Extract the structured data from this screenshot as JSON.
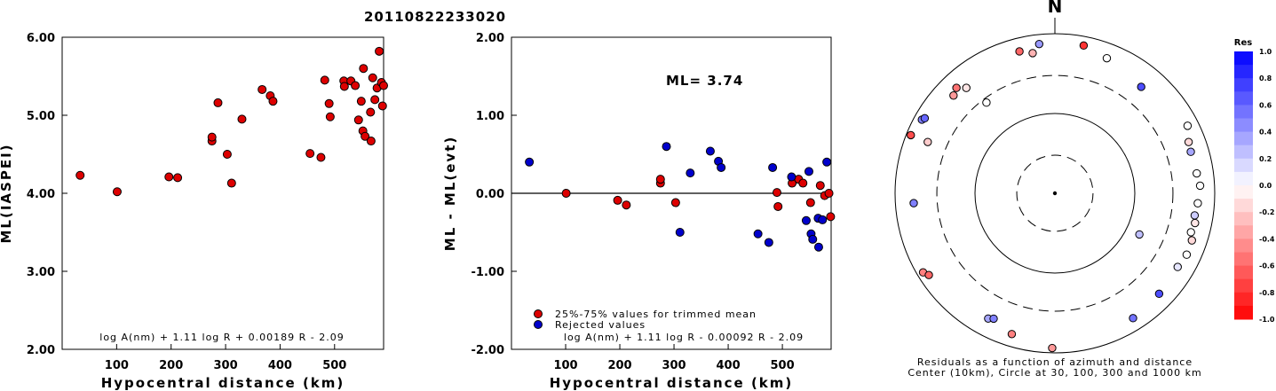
{
  "page_title": "20110822233020",
  "chart_data": [
    {
      "type": "scatter",
      "xlabel": "Hypocentral distance (km)",
      "ylabel": "ML(IASPEI)",
      "xlim": [
        0,
        590
      ],
      "ylim": [
        2.0,
        6.0
      ],
      "x_ticks": [
        "100",
        "200",
        "300",
        "400",
        "500"
      ],
      "y_ticks": [
        "2.00",
        "3.00",
        "4.00",
        "5.00",
        "6.00"
      ],
      "formula": "log A(nm) + 1.11 log R + 0.00189 R - 2.09",
      "points": [
        {
          "x": 33,
          "y": 4.23
        },
        {
          "x": 101,
          "y": 4.02
        },
        {
          "x": 196,
          "y": 4.21
        },
        {
          "x": 212,
          "y": 4.2
        },
        {
          "x": 275,
          "y": 4.67
        },
        {
          "x": 275,
          "y": 4.72
        },
        {
          "x": 286,
          "y": 5.16
        },
        {
          "x": 303,
          "y": 4.5
        },
        {
          "x": 311,
          "y": 4.13
        },
        {
          "x": 330,
          "y": 4.95
        },
        {
          "x": 367,
          "y": 5.33
        },
        {
          "x": 382,
          "y": 5.25
        },
        {
          "x": 387,
          "y": 5.18
        },
        {
          "x": 455,
          "y": 4.51
        },
        {
          "x": 475,
          "y": 4.46
        },
        {
          "x": 482,
          "y": 5.45
        },
        {
          "x": 490,
          "y": 5.15
        },
        {
          "x": 492,
          "y": 4.98
        },
        {
          "x": 517,
          "y": 5.44
        },
        {
          "x": 518,
          "y": 5.37
        },
        {
          "x": 530,
          "y": 5.44
        },
        {
          "x": 538,
          "y": 5.38
        },
        {
          "x": 544,
          "y": 4.94
        },
        {
          "x": 549,
          "y": 5.18
        },
        {
          "x": 552,
          "y": 4.8
        },
        {
          "x": 553,
          "y": 5.6
        },
        {
          "x": 556,
          "y": 4.73
        },
        {
          "x": 566,
          "y": 5.04
        },
        {
          "x": 567,
          "y": 4.67
        },
        {
          "x": 570,
          "y": 5.48
        },
        {
          "x": 574,
          "y": 5.2
        },
        {
          "x": 578,
          "y": 5.35
        },
        {
          "x": 582,
          "y": 5.82
        },
        {
          "x": 586,
          "y": 5.42
        },
        {
          "x": 588,
          "y": 5.12
        },
        {
          "x": 590,
          "y": 5.38
        }
      ]
    },
    {
      "type": "scatter",
      "xlabel": "Hypocentral distance (km)",
      "ylabel": "ML - ML(evt)",
      "xlim": [
        0,
        590
      ],
      "ylim": [
        -2.0,
        2.0
      ],
      "x_ticks": [
        "100",
        "200",
        "300",
        "400",
        "500"
      ],
      "y_ticks": [
        "-2.00",
        "-1.00",
        "0.00",
        "1.00",
        "2.00"
      ],
      "annotation": "ML= 3.74",
      "legend": [
        "25%-75% values for trimmed mean",
        "Rejected values"
      ],
      "formula": "log A(nm) + 1.11 log R - 0.00092 R - 2.09",
      "series": [
        {
          "color": "#dd0000",
          "points": [
            {
              "x": 101,
              "y": 0.0
            },
            {
              "x": 196,
              "y": -0.09
            },
            {
              "x": 212,
              "y": -0.15
            },
            {
              "x": 275,
              "y": 0.13
            },
            {
              "x": 275,
              "y": 0.18
            },
            {
              "x": 303,
              "y": -0.12
            },
            {
              "x": 490,
              "y": 0.01
            },
            {
              "x": 492,
              "y": -0.17
            },
            {
              "x": 518,
              "y": 0.13
            },
            {
              "x": 530,
              "y": 0.18
            },
            {
              "x": 538,
              "y": 0.13
            },
            {
              "x": 552,
              "y": -0.12
            },
            {
              "x": 570,
              "y": 0.1
            },
            {
              "x": 578,
              "y": -0.03
            },
            {
              "x": 586,
              "y": 0.0
            },
            {
              "x": 589,
              "y": -0.3
            }
          ]
        },
        {
          "color": "#0000cc",
          "points": [
            {
              "x": 33,
              "y": 0.4
            },
            {
              "x": 286,
              "y": 0.6
            },
            {
              "x": 311,
              "y": -0.5
            },
            {
              "x": 330,
              "y": 0.26
            },
            {
              "x": 367,
              "y": 0.54
            },
            {
              "x": 382,
              "y": 0.41
            },
            {
              "x": 387,
              "y": 0.33
            },
            {
              "x": 455,
              "y": -0.52
            },
            {
              "x": 475,
              "y": -0.63
            },
            {
              "x": 482,
              "y": 0.33
            },
            {
              "x": 517,
              "y": 0.21
            },
            {
              "x": 544,
              "y": -0.35
            },
            {
              "x": 549,
              "y": 0.28
            },
            {
              "x": 553,
              "y": -0.52
            },
            {
              "x": 556,
              "y": -0.59
            },
            {
              "x": 566,
              "y": -0.32
            },
            {
              "x": 567,
              "y": -0.69
            },
            {
              "x": 574,
              "y": -0.34
            },
            {
              "x": 582,
              "y": 0.4
            }
          ]
        }
      ]
    },
    {
      "type": "scatter",
      "polar": true,
      "north_label": "N",
      "rings_km": [
        30,
        100,
        300,
        1000
      ],
      "caption": [
        "Residuals as a function of azimuth and distance",
        "Center (10km), Circle at 30, 100, 300 and 1000 km"
      ],
      "colorbar": {
        "title": "Res",
        "range": [
          -1.0,
          1.0
        ],
        "labels": [
          "1.0",
          "0.8",
          "0.6",
          "0.4",
          "0.2",
          "0.0",
          "-0.2",
          "-0.4",
          "-0.6",
          "-0.8",
          "-1.0"
        ],
        "positive_color": "#0000ff",
        "negative_color": "#ff0000"
      },
      "points": [
        {
          "azimuth": 116,
          "distance_km": 150,
          "residual": 0.25
        },
        {
          "azimuth": 323,
          "distance_km": 265,
          "residual": 0.0
        },
        {
          "azimuth": 354,
          "distance_km": 760,
          "residual": 0.4
        },
        {
          "azimuth": 11,
          "distance_km": 770,
          "residual": -0.8
        },
        {
          "azimuth": 346,
          "distance_km": 680,
          "residual": -0.6
        },
        {
          "azimuth": 351,
          "distance_km": 600,
          "residual": -0.3
        },
        {
          "azimuth": 21,
          "distance_km": 650,
          "residual": 0.0
        },
        {
          "azimuth": 39,
          "distance_km": 520,
          "residual": 0.7
        },
        {
          "azimuth": 317,
          "distance_km": 640,
          "residual": -0.55
        },
        {
          "azimuth": 314,
          "distance_km": 580,
          "residual": -0.4
        },
        {
          "azimuth": 320,
          "distance_km": 530,
          "residual": -0.1
        },
        {
          "azimuth": 299,
          "distance_km": 800,
          "residual": 0.5
        },
        {
          "azimuth": 300,
          "distance_km": 760,
          "residual": 0.6
        },
        {
          "azimuth": 292,
          "distance_km": 880,
          "residual": -0.7
        },
        {
          "azimuth": 292,
          "distance_km": 520,
          "residual": -0.2
        },
        {
          "azimuth": 266,
          "distance_km": 590,
          "residual": 0.5
        },
        {
          "azimuth": 239,
          "distance_km": 840,
          "residual": -0.5
        },
        {
          "azimuth": 237,
          "distance_km": 760,
          "residual": -0.6
        },
        {
          "azimuth": 208,
          "distance_km": 600,
          "residual": 0.35
        },
        {
          "azimuth": 206,
          "distance_km": 560,
          "residual": 0.5
        },
        {
          "azimuth": 197,
          "distance_km": 700,
          "residual": -0.5
        },
        {
          "azimuth": 181,
          "distance_km": 870,
          "residual": -0.4
        },
        {
          "azimuth": 148,
          "distance_km": 700,
          "residual": 0.55
        },
        {
          "azimuth": 134,
          "distance_km": 650,
          "residual": 0.7
        },
        {
          "azimuth": 121,
          "distance_km": 620,
          "residual": 0.1
        },
        {
          "azimuth": 115,
          "distance_km": 660,
          "residual": 0.0
        },
        {
          "azimuth": 109,
          "distance_km": 650,
          "residual": -0.15
        },
        {
          "azimuth": 106,
          "distance_km": 590,
          "residual": 0.0
        },
        {
          "azimuth": 102,
          "distance_km": 620,
          "residual": -0.1
        },
        {
          "azimuth": 99,
          "distance_km": 590,
          "residual": 0.2
        },
        {
          "azimuth": 94,
          "distance_km": 620,
          "residual": 0.0
        },
        {
          "azimuth": 87,
          "distance_km": 660,
          "residual": 0.0
        },
        {
          "azimuth": 82,
          "distance_km": 620,
          "residual": 0.0
        },
        {
          "azimuth": 73,
          "distance_km": 600,
          "residual": 0.35
        },
        {
          "azimuth": 69,
          "distance_km": 620,
          "residual": -0.15
        },
        {
          "azimuth": 63,
          "distance_km": 730,
          "residual": 0.0
        }
      ]
    }
  ]
}
